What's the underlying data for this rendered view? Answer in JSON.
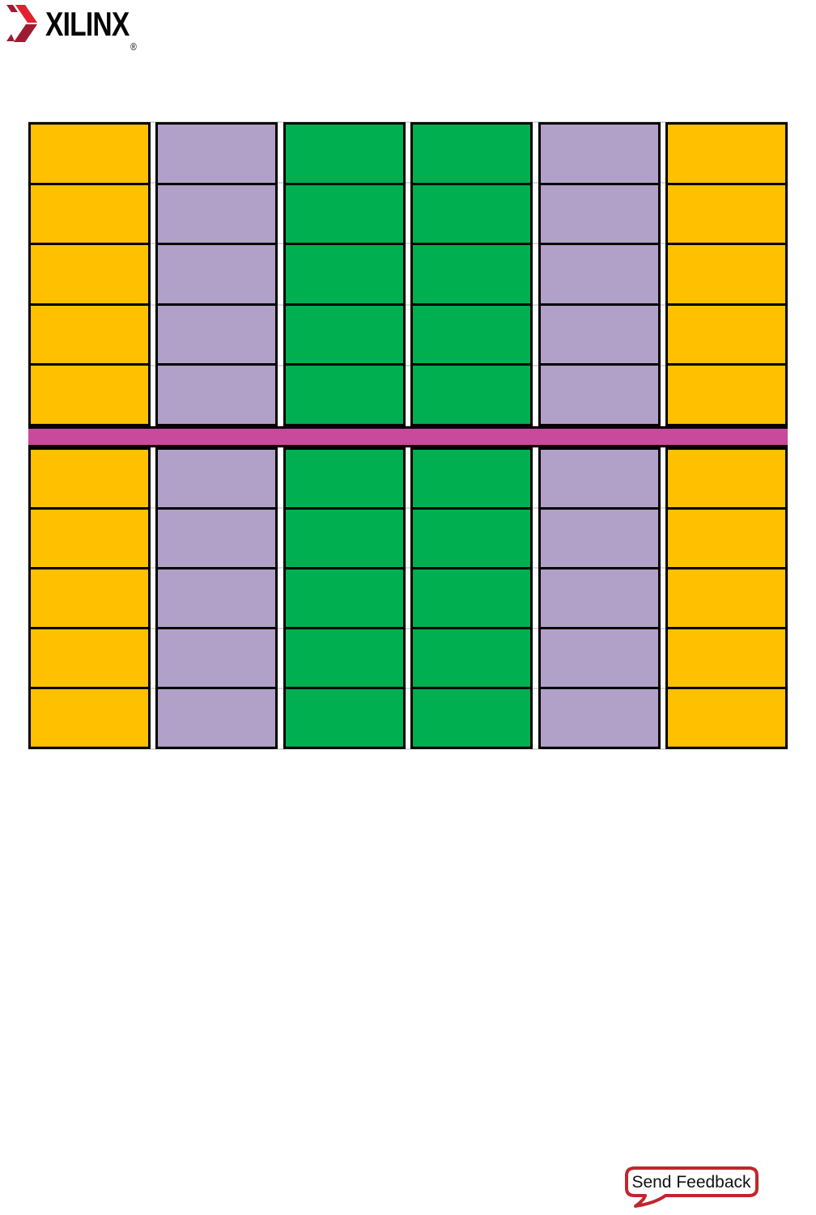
{
  "logo": {
    "brand": "XILINX",
    "registered": "®",
    "mark_colors": {
      "dark_red": "#9E1B32",
      "bright_red": "#E0212F"
    },
    "text_color": "#060606"
  },
  "diagram": {
    "type": "column-block-grid",
    "colors": {
      "yellow": "#FFC000",
      "purple": "#B1A0C7",
      "green": "#00AF50",
      "magenta": "#C9499C",
      "cell_border": "#000000",
      "row_guide_line": "#D9D9D9"
    },
    "columns": [
      "yellow",
      "purple",
      "green",
      "green",
      "purple",
      "yellow"
    ],
    "rows_above_bar": 5,
    "rows_below_bar": 5,
    "center_bar_color_key": "magenta"
  },
  "feedback": {
    "label": "Send Feedback",
    "border_color": "#C0272D",
    "fill_color": "#FFFFFF",
    "text_color": "#111111"
  }
}
